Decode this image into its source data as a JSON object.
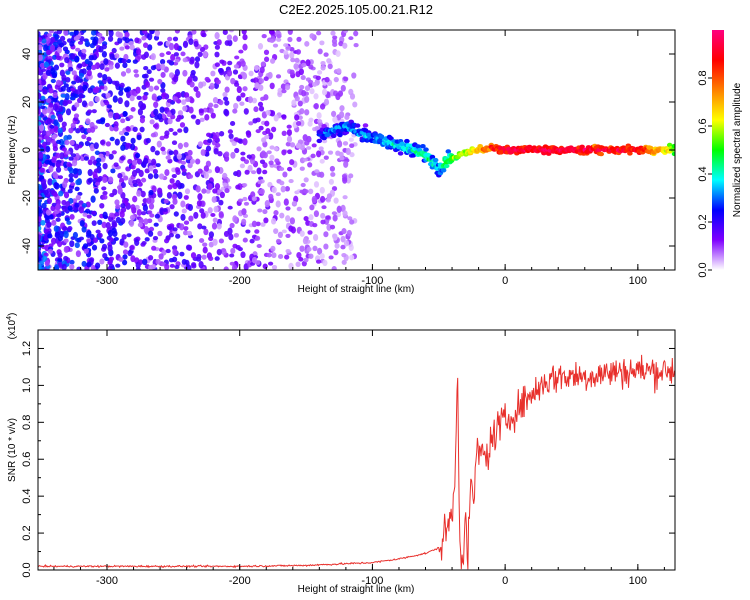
{
  "figure": {
    "title": "C2E2.2025.105.00.21.R12"
  },
  "chart_data": [
    {
      "type": "heatmap",
      "xlabel": "Height of straight line (km)",
      "ylabel": "Frequency (Hz)",
      "xlim": [
        -352,
        128
      ],
      "ylim": [
        -50,
        50
      ],
      "xticks": [
        -300,
        -200,
        -100,
        0,
        100
      ],
      "yticks": [
        -40,
        -20,
        0,
        20,
        40
      ],
      "grid": false,
      "colorbar": {
        "label": "Normalized spectral amplitude",
        "range": [
          0.0,
          1.0
        ],
        "ticks": [
          0.0,
          0.2,
          0.4,
          0.6,
          0.8
        ],
        "colors": [
          "#ffffff",
          "#7f00ff",
          "#0000ff",
          "#00ffff",
          "#00ff00",
          "#ffff00",
          "#ff8000",
          "#ff0000",
          "#ff0080"
        ]
      },
      "ridge_center": {
        "x": [
          -140,
          -120,
          -100,
          -80,
          -60,
          -50,
          -45,
          -30,
          -10,
          0,
          50,
          100,
          128
        ],
        "y": [
          6,
          10,
          5,
          2,
          -2,
          -8,
          -5,
          -1,
          1,
          0,
          0,
          0,
          0
        ],
        "amplitude": [
          0.3,
          0.35,
          0.35,
          0.4,
          0.45,
          0.4,
          0.5,
          0.6,
          0.85,
          0.95,
          0.95,
          0.9,
          0.6
        ]
      }
    },
    {
      "type": "line",
      "xlabel": "Height of straight line (km)",
      "ylabel": "SNR (10 * v/v)",
      "yscale_label": "(x10",
      "yscale_exp": "4",
      "xlim": [
        -352,
        128
      ],
      "ylim": [
        0,
        1.3
      ],
      "xticks": [
        -300,
        -200,
        -100,
        0,
        100
      ],
      "yticks": [
        "0.0",
        "0.2",
        "0.4",
        "0.6",
        "0.8",
        "1.0",
        "1.2"
      ],
      "grid": false,
      "series": [
        {
          "color": "#e8302c",
          "x": [
            -352,
            -200,
            -150,
            -100,
            -80,
            -60,
            -50,
            -45,
            -40,
            -38,
            -36,
            -34,
            -32,
            -30,
            -28,
            -26,
            -24,
            -22,
            -20,
            -18,
            -15,
            -10,
            -5,
            0,
            10,
            20,
            30,
            40,
            60,
            80,
            100,
            120,
            128
          ],
          "y": [
            0.02,
            0.02,
            0.025,
            0.04,
            0.06,
            0.09,
            0.12,
            0.2,
            0.3,
            0.45,
            1.1,
            0.15,
            0.05,
            0.3,
            0.05,
            0.5,
            0.3,
            0.65,
            0.6,
            0.65,
            0.6,
            0.7,
            0.78,
            0.8,
            0.88,
            0.95,
            1.02,
            1.05,
            1.05,
            1.07,
            1.08,
            1.08,
            1.08
          ]
        }
      ]
    }
  ]
}
